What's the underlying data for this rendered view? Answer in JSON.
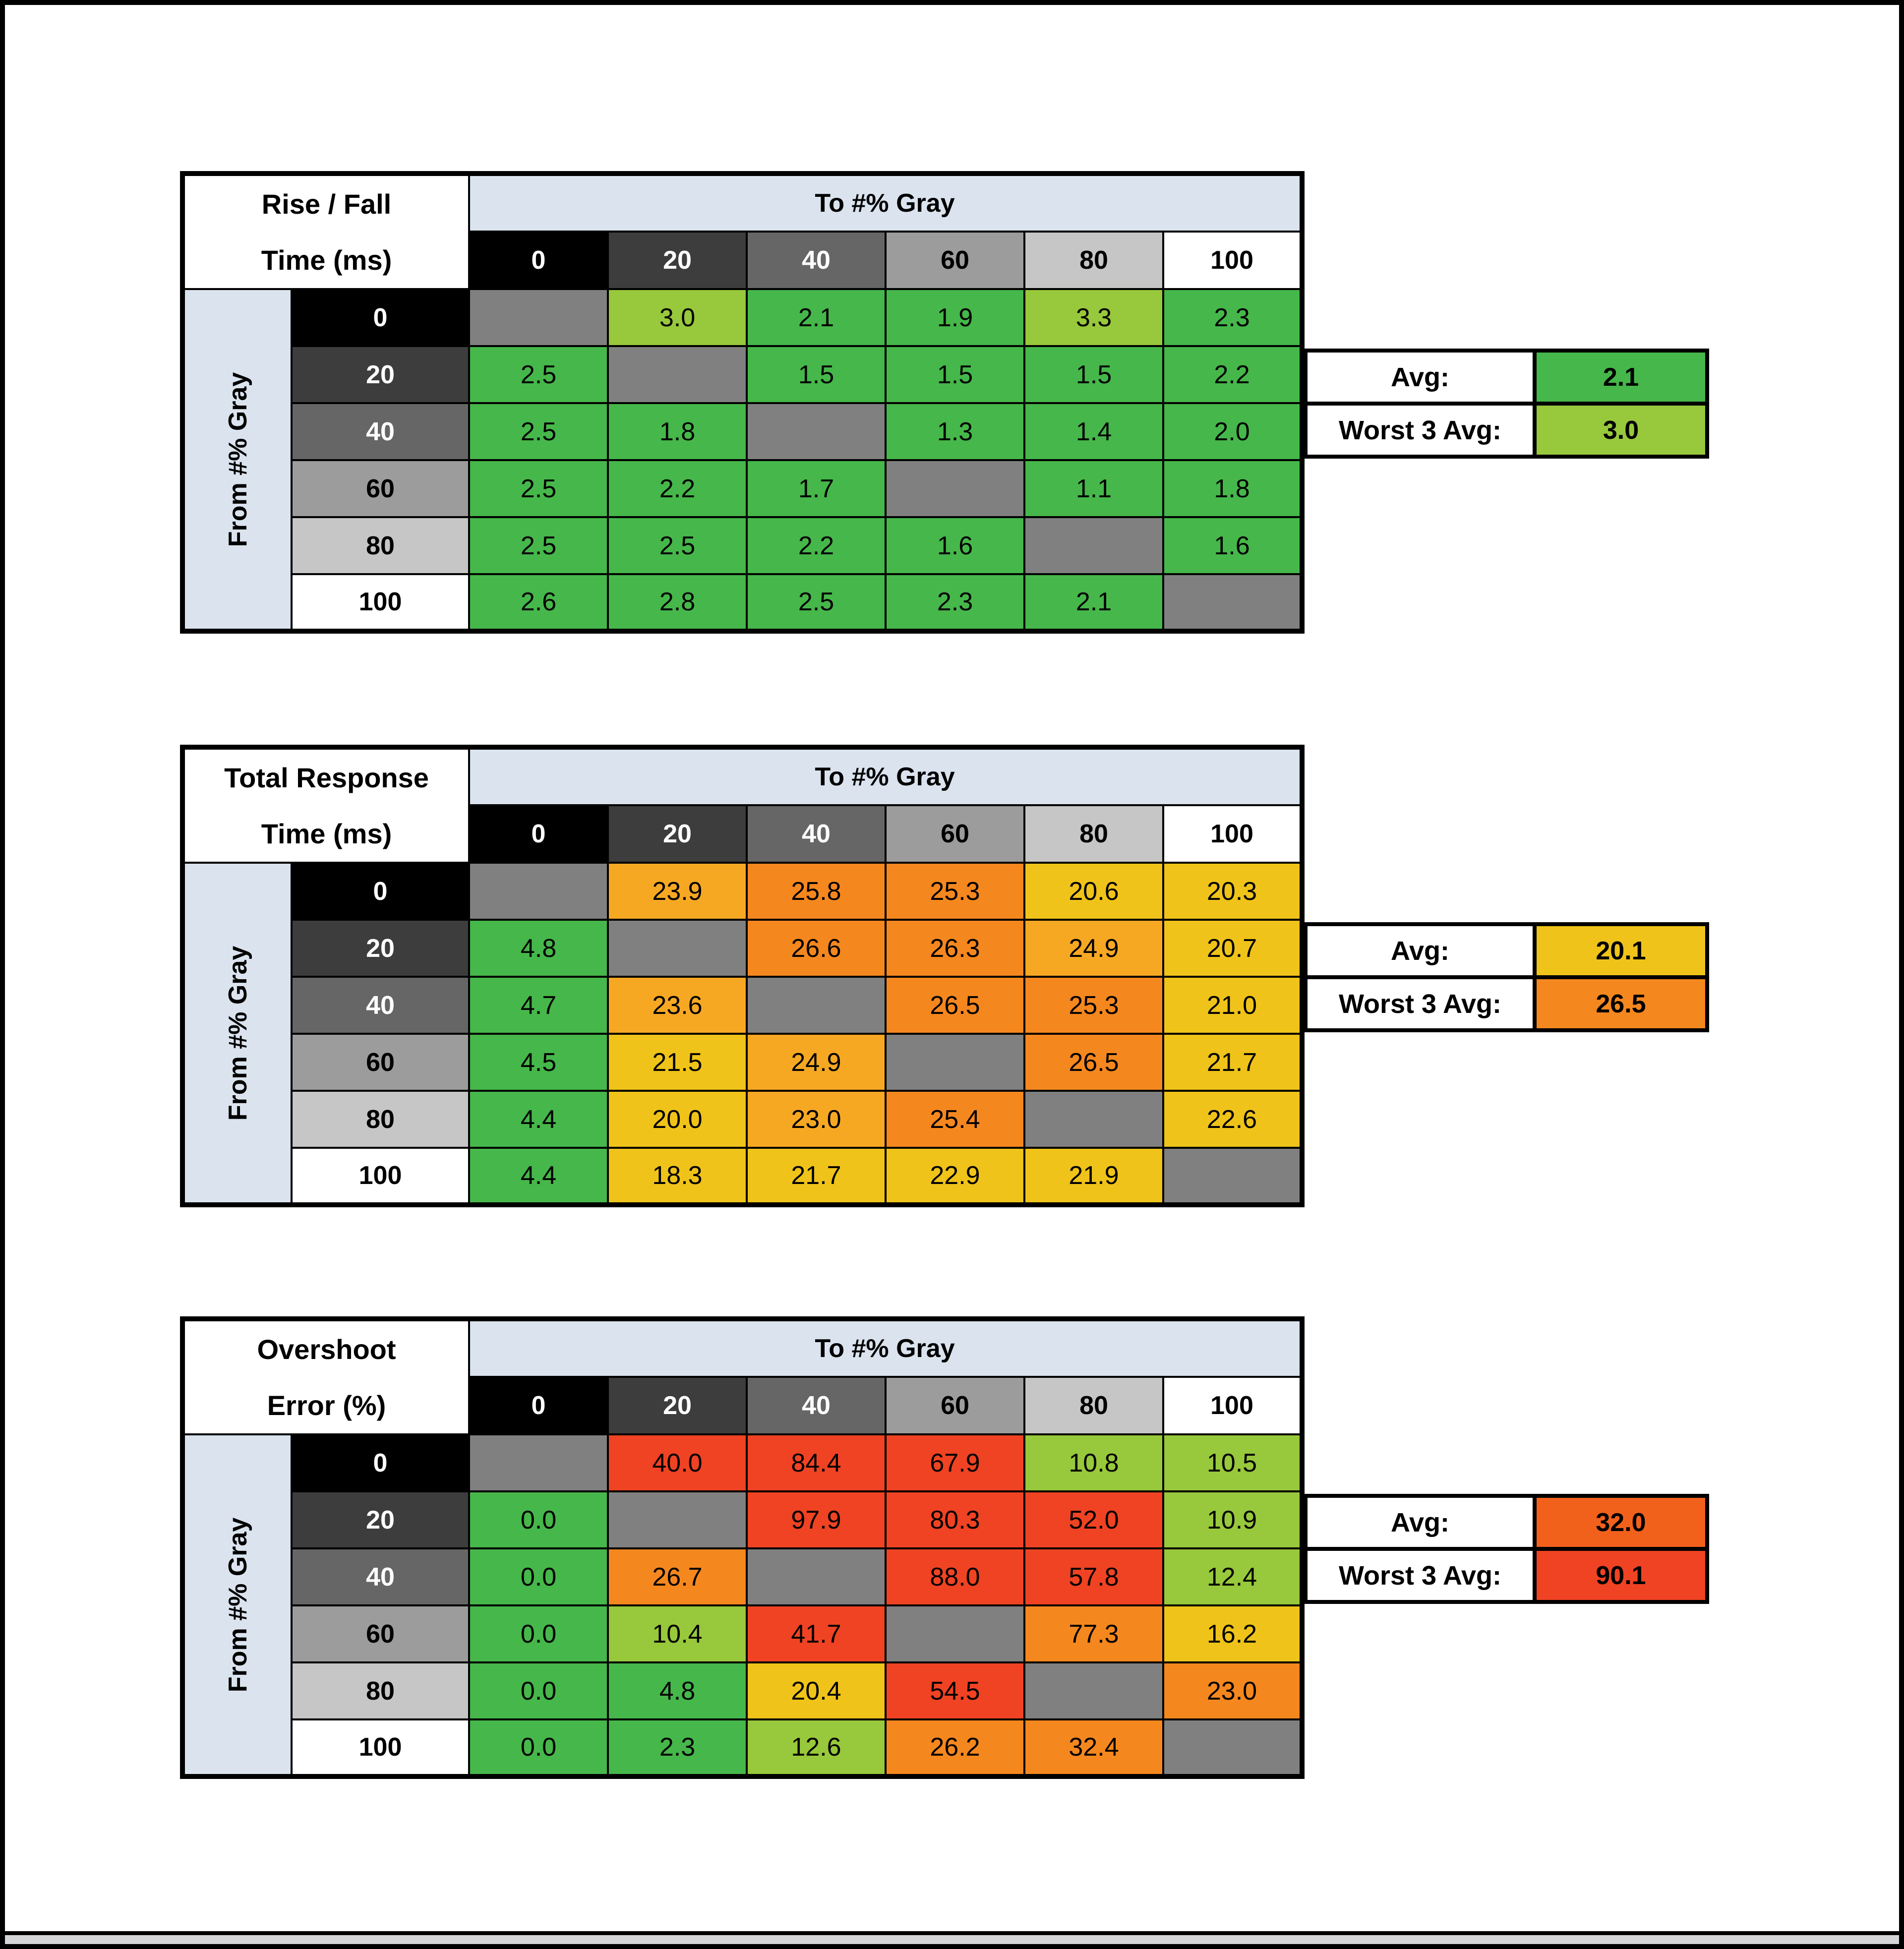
{
  "page": {
    "background": "#ffffff",
    "frame_color": "#000000",
    "bottom_strip_color": "#d3d5d6"
  },
  "colors": {
    "g": "#46b74a",
    "yg": "#98c83b",
    "y": "#efc319",
    "yo": "#f7a823",
    "o": "#f5871f",
    "or": "#f2611c",
    "r": "#ef4323",
    "diag": "#808080",
    "axis_band": "#dae3ee"
  },
  "gray_headers": [
    {
      "label": "0",
      "bg": "#000000",
      "fg": "#ffffff"
    },
    {
      "label": "20",
      "bg": "#3d3d3d",
      "fg": "#ffffff"
    },
    {
      "label": "40",
      "bg": "#666666",
      "fg": "#ffffff"
    },
    {
      "label": "60",
      "bg": "#9c9c9c",
      "fg": "#000000"
    },
    {
      "label": "80",
      "bg": "#c6c6c6",
      "fg": "#000000"
    },
    {
      "label": "100",
      "bg": "#ffffff",
      "fg": "#000000"
    }
  ],
  "tables": [
    {
      "id": "rise-fall-time",
      "title_line1": "Rise / Fall",
      "title_line2": "Time (ms)",
      "col_axis": "To #% Gray",
      "row_axis": "From #% Gray",
      "rows": [
        {
          "header": "0",
          "cells": [
            null,
            {
              "v": "3.0",
              "c": "yg"
            },
            {
              "v": "2.1",
              "c": "g"
            },
            {
              "v": "1.9",
              "c": "g"
            },
            {
              "v": "3.3",
              "c": "yg"
            },
            {
              "v": "2.3",
              "c": "g"
            }
          ]
        },
        {
          "header": "20",
          "cells": [
            {
              "v": "2.5",
              "c": "g"
            },
            null,
            {
              "v": "1.5",
              "c": "g"
            },
            {
              "v": "1.5",
              "c": "g"
            },
            {
              "v": "1.5",
              "c": "g"
            },
            {
              "v": "2.2",
              "c": "g"
            }
          ]
        },
        {
          "header": "40",
          "cells": [
            {
              "v": "2.5",
              "c": "g"
            },
            {
              "v": "1.8",
              "c": "g"
            },
            null,
            {
              "v": "1.3",
              "c": "g"
            },
            {
              "v": "1.4",
              "c": "g"
            },
            {
              "v": "2.0",
              "c": "g"
            }
          ]
        },
        {
          "header": "60",
          "cells": [
            {
              "v": "2.5",
              "c": "g"
            },
            {
              "v": "2.2",
              "c": "g"
            },
            {
              "v": "1.7",
              "c": "g"
            },
            null,
            {
              "v": "1.1",
              "c": "g"
            },
            {
              "v": "1.8",
              "c": "g"
            }
          ]
        },
        {
          "header": "80",
          "cells": [
            {
              "v": "2.5",
              "c": "g"
            },
            {
              "v": "2.5",
              "c": "g"
            },
            {
              "v": "2.2",
              "c": "g"
            },
            {
              "v": "1.6",
              "c": "g"
            },
            null,
            {
              "v": "1.6",
              "c": "g"
            }
          ]
        },
        {
          "header": "100",
          "cells": [
            {
              "v": "2.6",
              "c": "g"
            },
            {
              "v": "2.8",
              "c": "g"
            },
            {
              "v": "2.5",
              "c": "g"
            },
            {
              "v": "2.3",
              "c": "g"
            },
            {
              "v": "2.1",
              "c": "g"
            },
            null
          ]
        }
      ],
      "summary": {
        "avg_label": "Avg:",
        "avg_value": "2.1",
        "avg_color": "g",
        "worst_label": "Worst 3 Avg:",
        "worst_value": "3.0",
        "worst_color": "yg"
      }
    },
    {
      "id": "total-response-time",
      "title_line1": "Total Response",
      "title_line2": "Time (ms)",
      "col_axis": "To #% Gray",
      "row_axis": "From #% Gray",
      "rows": [
        {
          "header": "0",
          "cells": [
            null,
            {
              "v": "23.9",
              "c": "yo"
            },
            {
              "v": "25.8",
              "c": "o"
            },
            {
              "v": "25.3",
              "c": "o"
            },
            {
              "v": "20.6",
              "c": "y"
            },
            {
              "v": "20.3",
              "c": "y"
            }
          ]
        },
        {
          "header": "20",
          "cells": [
            {
              "v": "4.8",
              "c": "g"
            },
            null,
            {
              "v": "26.6",
              "c": "o"
            },
            {
              "v": "26.3",
              "c": "o"
            },
            {
              "v": "24.9",
              "c": "yo"
            },
            {
              "v": "20.7",
              "c": "y"
            }
          ]
        },
        {
          "header": "40",
          "cells": [
            {
              "v": "4.7",
              "c": "g"
            },
            {
              "v": "23.6",
              "c": "yo"
            },
            null,
            {
              "v": "26.5",
              "c": "o"
            },
            {
              "v": "25.3",
              "c": "o"
            },
            {
              "v": "21.0",
              "c": "y"
            }
          ]
        },
        {
          "header": "60",
          "cells": [
            {
              "v": "4.5",
              "c": "g"
            },
            {
              "v": "21.5",
              "c": "y"
            },
            {
              "v": "24.9",
              "c": "yo"
            },
            null,
            {
              "v": "26.5",
              "c": "o"
            },
            {
              "v": "21.7",
              "c": "y"
            }
          ]
        },
        {
          "header": "80",
          "cells": [
            {
              "v": "4.4",
              "c": "g"
            },
            {
              "v": "20.0",
              "c": "y"
            },
            {
              "v": "23.0",
              "c": "yo"
            },
            {
              "v": "25.4",
              "c": "o"
            },
            null,
            {
              "v": "22.6",
              "c": "y"
            }
          ]
        },
        {
          "header": "100",
          "cells": [
            {
              "v": "4.4",
              "c": "g"
            },
            {
              "v": "18.3",
              "c": "y"
            },
            {
              "v": "21.7",
              "c": "y"
            },
            {
              "v": "22.9",
              "c": "y"
            },
            {
              "v": "21.9",
              "c": "y"
            },
            null
          ]
        }
      ],
      "summary": {
        "avg_label": "Avg:",
        "avg_value": "20.1",
        "avg_color": "y",
        "worst_label": "Worst 3 Avg:",
        "worst_value": "26.5",
        "worst_color": "o"
      }
    },
    {
      "id": "overshoot-error",
      "title_line1": "Overshoot",
      "title_line2": "Error (%)",
      "col_axis": "To #% Gray",
      "row_axis": "From #% Gray",
      "rows": [
        {
          "header": "0",
          "cells": [
            null,
            {
              "v": "40.0",
              "c": "r"
            },
            {
              "v": "84.4",
              "c": "r"
            },
            {
              "v": "67.9",
              "c": "r"
            },
            {
              "v": "10.8",
              "c": "yg"
            },
            {
              "v": "10.5",
              "c": "yg"
            }
          ]
        },
        {
          "header": "20",
          "cells": [
            {
              "v": "0.0",
              "c": "g"
            },
            null,
            {
              "v": "97.9",
              "c": "r"
            },
            {
              "v": "80.3",
              "c": "r"
            },
            {
              "v": "52.0",
              "c": "r"
            },
            {
              "v": "10.9",
              "c": "yg"
            }
          ]
        },
        {
          "header": "40",
          "cells": [
            {
              "v": "0.0",
              "c": "g"
            },
            {
              "v": "26.7",
              "c": "o"
            },
            null,
            {
              "v": "88.0",
              "c": "r"
            },
            {
              "v": "57.8",
              "c": "r"
            },
            {
              "v": "12.4",
              "c": "yg"
            }
          ]
        },
        {
          "header": "60",
          "cells": [
            {
              "v": "0.0",
              "c": "g"
            },
            {
              "v": "10.4",
              "c": "yg"
            },
            {
              "v": "41.7",
              "c": "r"
            },
            null,
            {
              "v": "77.3",
              "c": "o"
            },
            {
              "v": "16.2",
              "c": "y"
            }
          ]
        },
        {
          "header": "80",
          "cells": [
            {
              "v": "0.0",
              "c": "g"
            },
            {
              "v": "4.8",
              "c": "g"
            },
            {
              "v": "20.4",
              "c": "y"
            },
            {
              "v": "54.5",
              "c": "r"
            },
            null,
            {
              "v": "23.0",
              "c": "o"
            }
          ]
        },
        {
          "header": "100",
          "cells": [
            {
              "v": "0.0",
              "c": "g"
            },
            {
              "v": "2.3",
              "c": "g"
            },
            {
              "v": "12.6",
              "c": "yg"
            },
            {
              "v": "26.2",
              "c": "o"
            },
            {
              "v": "32.4",
              "c": "o"
            },
            null
          ]
        }
      ],
      "summary": {
        "avg_label": "Avg:",
        "avg_value": "32.0",
        "avg_color": "or",
        "worst_label": "Worst 3 Avg:",
        "worst_value": "90.1",
        "worst_color": "r"
      }
    }
  ],
  "chart_data": [
    {
      "type": "heatmap",
      "title": "Rise / Fall Time (ms)",
      "xlabel": "To #% Gray",
      "ylabel": "From #% Gray",
      "x_categories": [
        "0",
        "20",
        "40",
        "60",
        "80",
        "100"
      ],
      "y_categories": [
        "0",
        "20",
        "40",
        "60",
        "80",
        "100"
      ],
      "values": [
        [
          null,
          3.0,
          2.1,
          1.9,
          3.3,
          2.3
        ],
        [
          2.5,
          null,
          1.5,
          1.5,
          1.5,
          2.2
        ],
        [
          2.5,
          1.8,
          null,
          1.3,
          1.4,
          2.0
        ],
        [
          2.5,
          2.2,
          1.7,
          null,
          1.1,
          1.8
        ],
        [
          2.5,
          2.5,
          2.2,
          1.6,
          null,
          1.6
        ],
        [
          2.6,
          2.8,
          2.5,
          2.3,
          2.1,
          null
        ]
      ],
      "avg": 2.1,
      "worst_3_avg": 3.0
    },
    {
      "type": "heatmap",
      "title": "Total Response Time (ms)",
      "xlabel": "To #% Gray",
      "ylabel": "From #% Gray",
      "x_categories": [
        "0",
        "20",
        "40",
        "60",
        "80",
        "100"
      ],
      "y_categories": [
        "0",
        "20",
        "40",
        "60",
        "80",
        "100"
      ],
      "values": [
        [
          null,
          23.9,
          25.8,
          25.3,
          20.6,
          20.3
        ],
        [
          4.8,
          null,
          26.6,
          26.3,
          24.9,
          20.7
        ],
        [
          4.7,
          23.6,
          null,
          26.5,
          25.3,
          21.0
        ],
        [
          4.5,
          21.5,
          24.9,
          null,
          26.5,
          21.7
        ],
        [
          4.4,
          20.0,
          23.0,
          25.4,
          null,
          22.6
        ],
        [
          4.4,
          18.3,
          21.7,
          22.9,
          21.9,
          null
        ]
      ],
      "avg": 20.1,
      "worst_3_avg": 26.5
    },
    {
      "type": "heatmap",
      "title": "Overshoot Error (%)",
      "xlabel": "To #% Gray",
      "ylabel": "From #% Gray",
      "x_categories": [
        "0",
        "20",
        "40",
        "60",
        "80",
        "100"
      ],
      "y_categories": [
        "0",
        "20",
        "40",
        "60",
        "80",
        "100"
      ],
      "values": [
        [
          null,
          40.0,
          84.4,
          67.9,
          10.8,
          10.5
        ],
        [
          0.0,
          null,
          97.9,
          80.3,
          52.0,
          10.9
        ],
        [
          0.0,
          26.7,
          null,
          88.0,
          57.8,
          12.4
        ],
        [
          0.0,
          10.4,
          41.7,
          null,
          77.3,
          16.2
        ],
        [
          0.0,
          4.8,
          20.4,
          54.5,
          null,
          23.0
        ],
        [
          0.0,
          2.3,
          12.6,
          26.2,
          32.4,
          null
        ]
      ],
      "avg": 32.0,
      "worst_3_avg": 90.1
    }
  ]
}
